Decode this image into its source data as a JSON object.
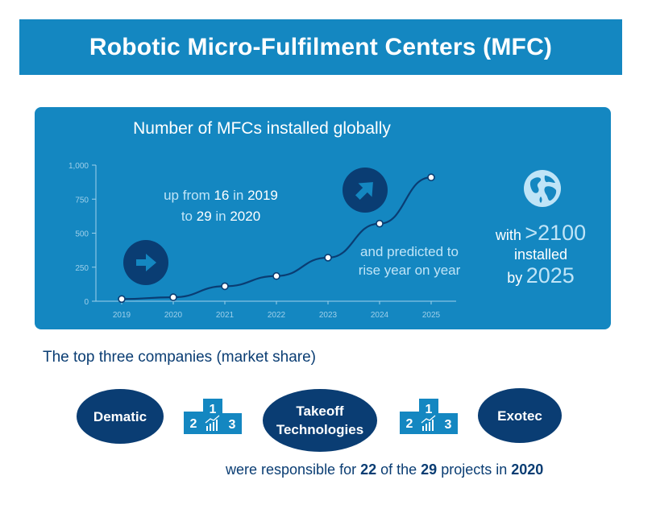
{
  "header": {
    "title": "Robotic Micro-Fulfilment Centers (MFC)"
  },
  "colors": {
    "header_bg": "#1487c1",
    "panel_bg": "#1487c1",
    "dark_navy": "#0a3d73",
    "highlight": "#bfe4f7",
    "white": "#ffffff"
  },
  "chart_data": {
    "type": "line",
    "title": "Number of MFCs installed globally",
    "xlabel": "",
    "ylabel": "",
    "categories": [
      "2019",
      "2020",
      "2021",
      "2022",
      "2023",
      "2024",
      "2025"
    ],
    "series": [
      {
        "values": [
          16,
          29,
          110,
          185,
          320,
          570,
          910
        ]
      }
    ],
    "ylim": [
      0,
      1000
    ],
    "yticks": [
      0,
      250,
      500,
      750,
      1000
    ],
    "ytick_labels": [
      "0",
      "250",
      "500",
      "750",
      "1,000"
    ],
    "grid": false,
    "legend": "none"
  },
  "annotations": {
    "growth_line1": {
      "a": "up from ",
      "b": "16",
      "c": " in ",
      "d": "2019"
    },
    "growth_line2": {
      "a": "to ",
      "b": "29",
      "c": " in ",
      "d": "2020"
    },
    "predicted": [
      "and predicted to",
      "rise year on year"
    ],
    "icons": [
      "arrow-right-icon",
      "arrow-up-right-icon",
      "globe-icon",
      "podium-icon"
    ]
  },
  "side_stat": {
    "with": "with",
    "value": ">2100",
    "installed": "installed",
    "by": "by",
    "year": "2025"
  },
  "companies": {
    "title": "The top three companies (market share)",
    "names": [
      "Dematic",
      "Takeoff Technologies",
      "Exotec"
    ],
    "name_lines": {
      "takeoff_1": "Takeoff",
      "takeoff_2": "Technologies"
    },
    "podium_labels": [
      "1",
      "2",
      "3"
    ]
  },
  "footer": {
    "a": "were responsible for ",
    "b": "22",
    "c": " of the ",
    "d": "29",
    "e": " projects in ",
    "f": "2020"
  }
}
